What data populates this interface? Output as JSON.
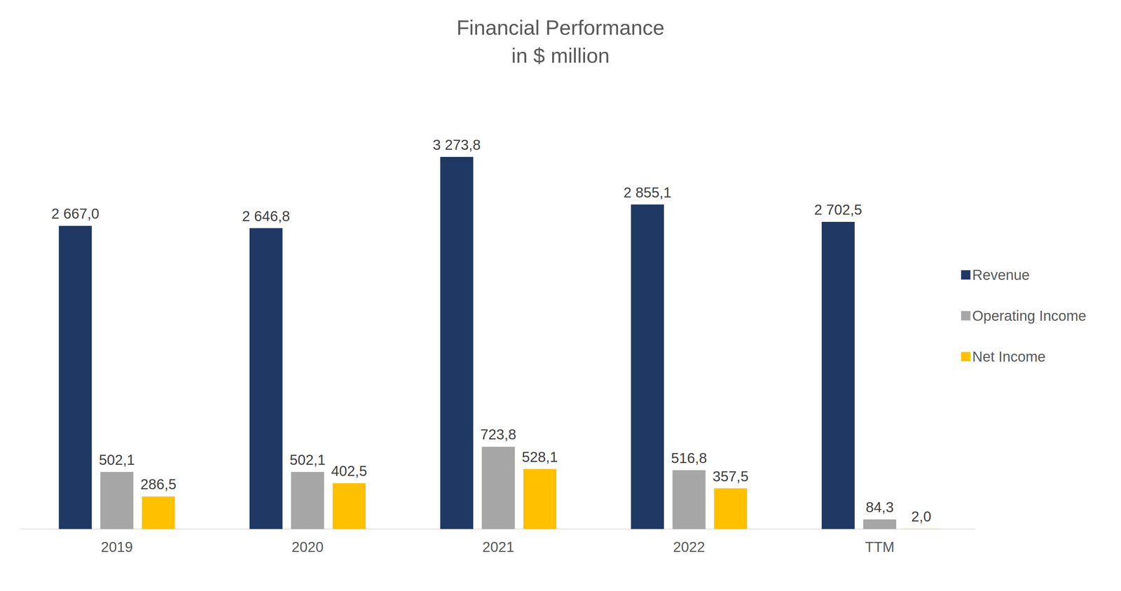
{
  "chart_data": {
    "type": "bar",
    "title": "Financial Performance",
    "subtitle": "in $ million",
    "categories": [
      "2019",
      "2020",
      "2021",
      "2022",
      "TTM"
    ],
    "series": [
      {
        "name": "Revenue",
        "color": "#203864",
        "values": [
          2667.0,
          2646.8,
          3273.8,
          2855.1,
          2702.5
        ],
        "value_labels": [
          "2 667,0",
          "2 646,8",
          "3 273,8",
          "2 855,1",
          "2 702,5"
        ]
      },
      {
        "name": "Operating Income",
        "color": "#a6a6a6",
        "values": [
          502.1,
          502.1,
          723.8,
          516.8,
          84.3
        ],
        "value_labels": [
          "502,1",
          "502,1",
          "723,8",
          "516,8",
          "84,3"
        ]
      },
      {
        "name": "Net Income",
        "color": "#ffc000",
        "values": [
          286.5,
          402.5,
          528.1,
          357.5,
          2.0
        ],
        "value_labels": [
          "286,5",
          "402,5",
          "528,1",
          "357,5",
          "2,0"
        ]
      }
    ],
    "ylim": [
      0,
      3500
    ],
    "grid": false,
    "legend": "right",
    "data_labels": true,
    "tick_labels": "x"
  }
}
